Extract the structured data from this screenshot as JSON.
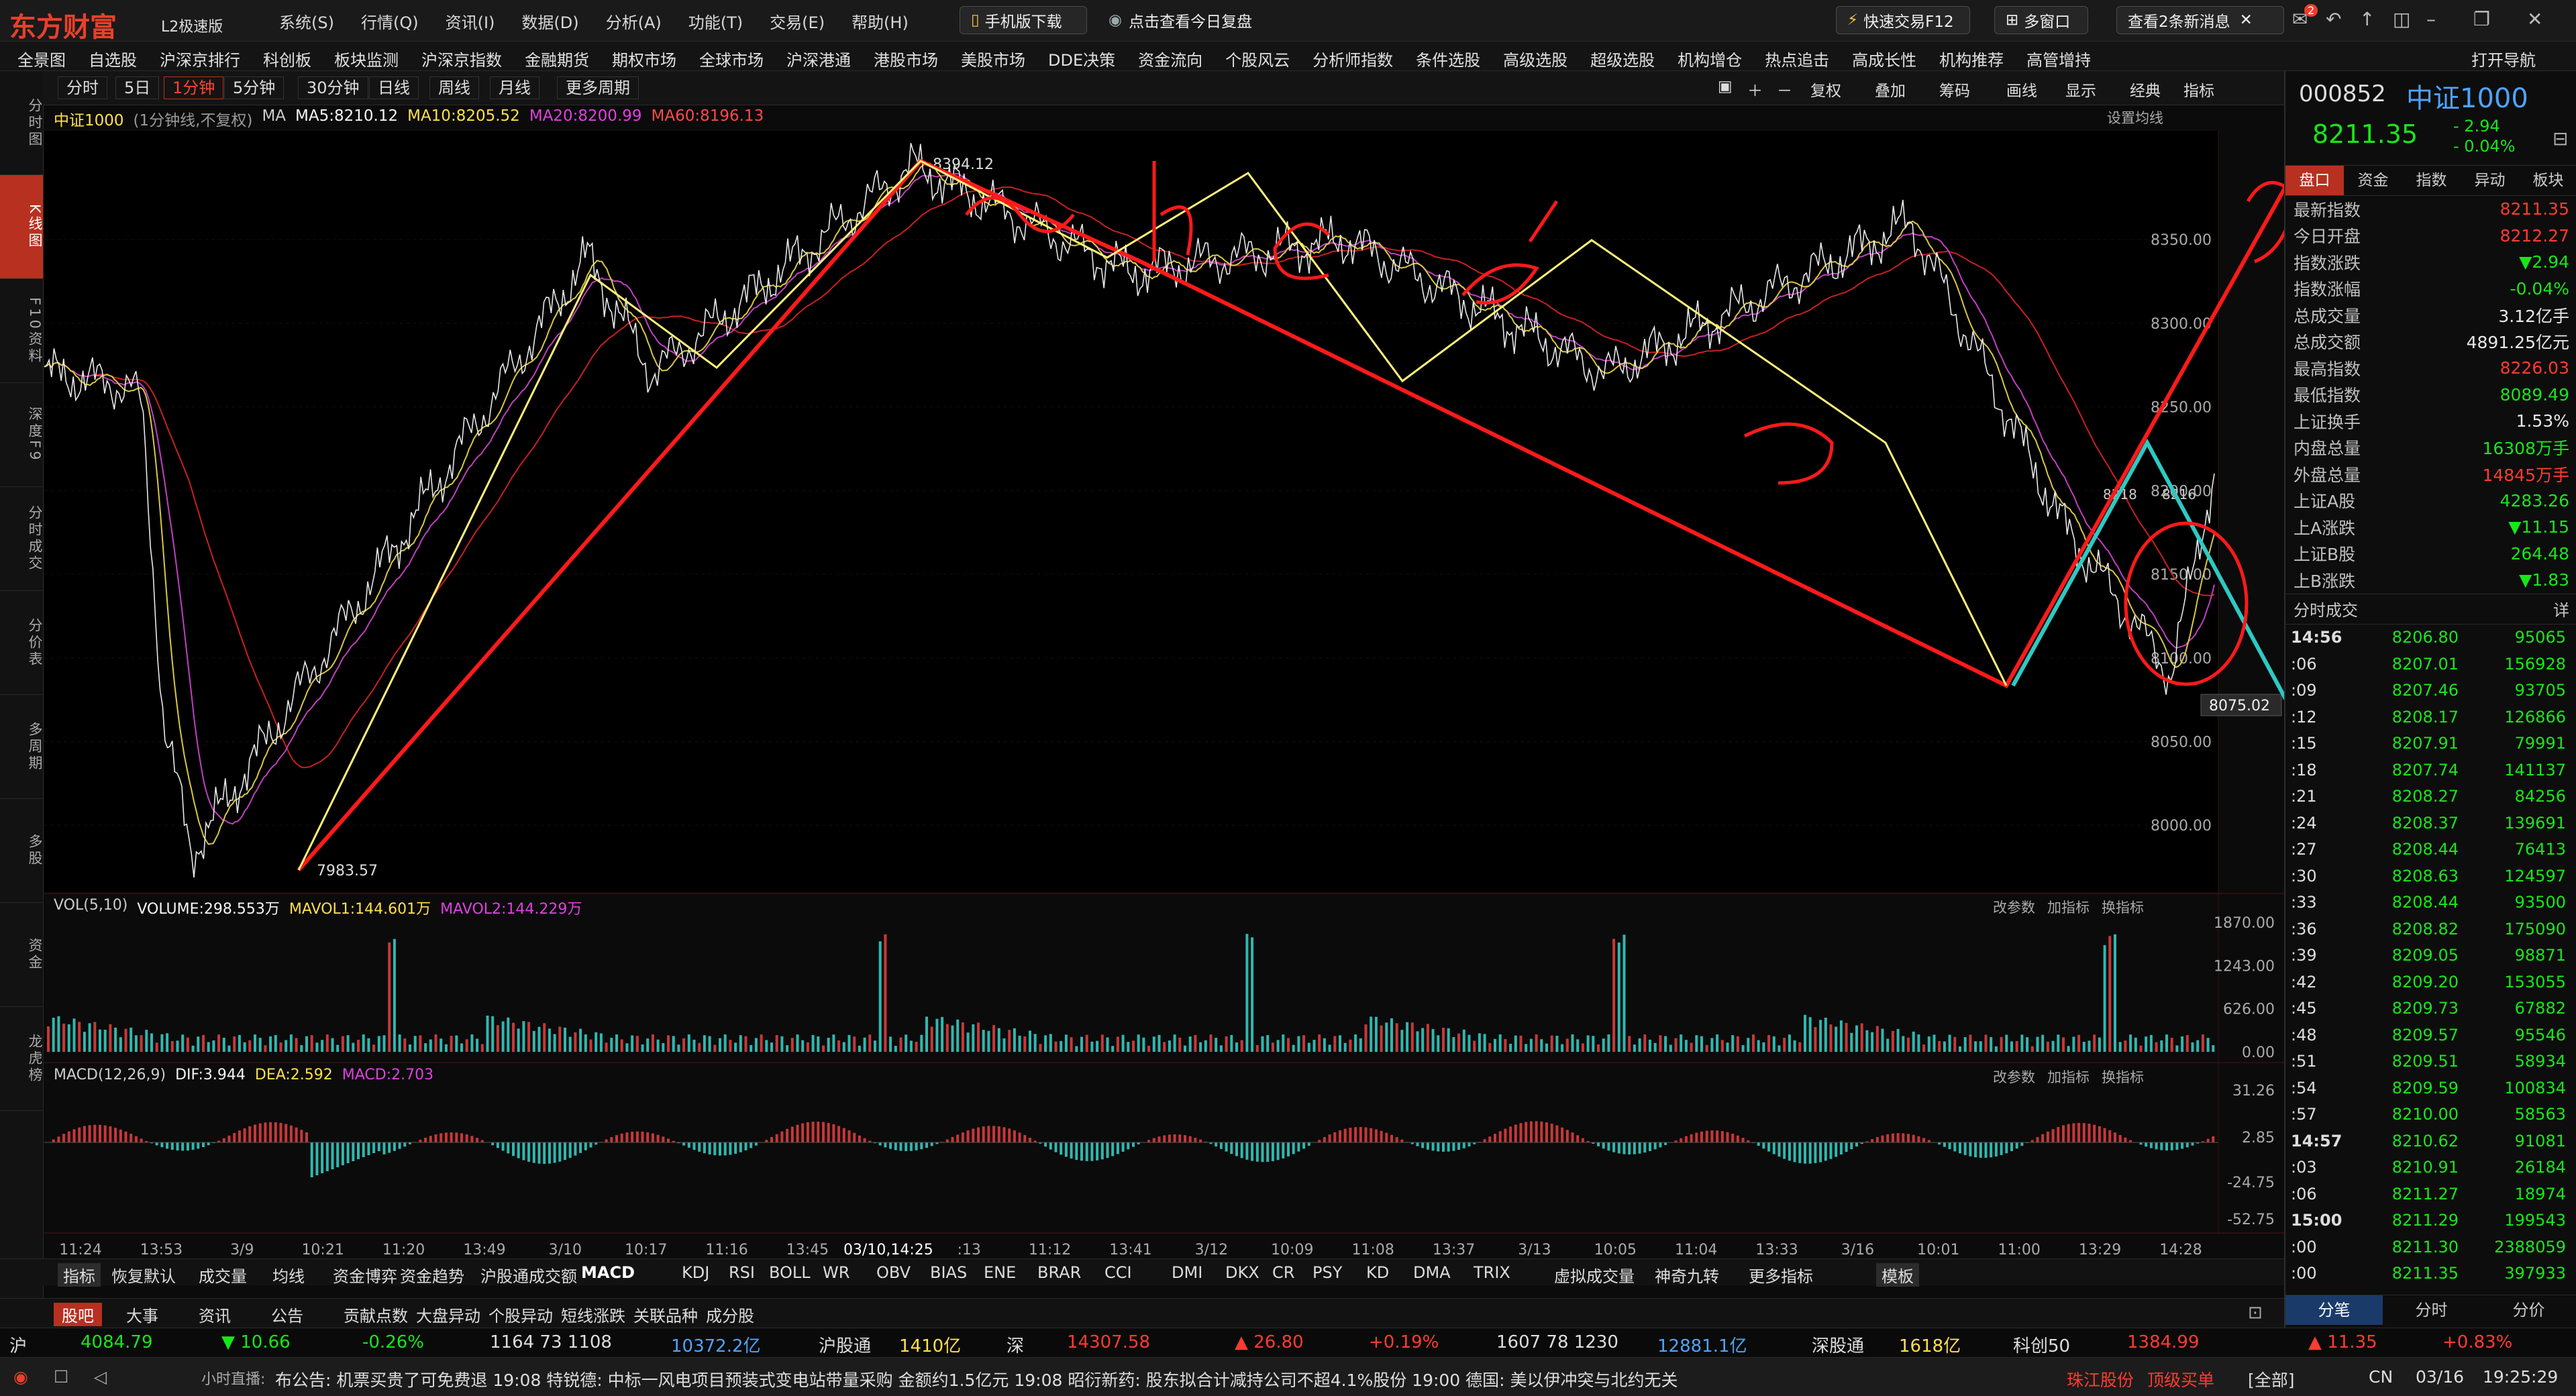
{
  "app": {
    "logo": "东方财富",
    "edition": "L2极速版"
  },
  "title_menu": [
    "系统(S)",
    "行情(Q)",
    "资讯(I)",
    "数据(D)",
    "分析(A)",
    "功能(T)",
    "交易(E)",
    "帮助(H)"
  ],
  "top_buttons": {
    "mobile": "手机版下载",
    "review": "点击查看今日复盘",
    "fast_trade": "快速交易F12",
    "multi_window": "多窗口",
    "messages": "查看2条新消息",
    "msg_badge": "2"
  },
  "nav": [
    "全景图",
    "自选股",
    "沪深京排行",
    "科创板",
    "板块监测",
    "沪深京指数",
    "金融期货",
    "期权市场",
    "全球市场",
    "沪深港通",
    "港股市场",
    "美股市场",
    "DDE决策",
    "资金流向",
    "个股风云",
    "分析师指数",
    "条件选股",
    "高级选股",
    "超级选股",
    "机构增仓",
    "热点追击",
    "高成长性",
    "机构推荐",
    "高管增持"
  ],
  "nav_right": "打开导航",
  "left_tabs": [
    {
      "label": "分时图",
      "active": false
    },
    {
      "label": "K线图",
      "active": true
    },
    {
      "label": "F10资料",
      "active": false
    },
    {
      "label": "深度F9",
      "active": false
    },
    {
      "label": "分时成交",
      "active": false
    },
    {
      "label": "分价表",
      "active": false
    },
    {
      "label": "多周期",
      "active": false
    },
    {
      "label": "多股",
      "active": false
    },
    {
      "label": "资金",
      "active": false
    },
    {
      "label": "龙虎榜",
      "active": false
    }
  ],
  "period_tabs": [
    {
      "label": "分时",
      "active": false
    },
    {
      "label": "5日",
      "active": false
    },
    {
      "label": "1分钟",
      "active": true
    },
    {
      "label": "5分钟",
      "active": false
    },
    {
      "label": "30分钟",
      "active": false
    },
    {
      "label": "日线",
      "active": false
    },
    {
      "label": "周线",
      "active": false
    },
    {
      "label": "月线",
      "active": false
    },
    {
      "label": "更多周期",
      "active": false
    }
  ],
  "toolbar": [
    "复权",
    "叠加",
    "筹码",
    "画线",
    "显示",
    "经典",
    "指标"
  ],
  "chart_header": {
    "name": "中证1000",
    "meta": "(1分钟线,不复权)",
    "ma_label": "MA",
    "ma5": "MA5:8210.12",
    "ma10": "MA10:8205.52",
    "ma20": "MA20:8200.99",
    "ma60": "MA60:8196.13",
    "setting": "设置均线"
  },
  "price_labels": {
    "high": "8394.12",
    "low": "7983.57",
    "current": "8075.02",
    "mini1": "8218",
    "mini2": "8216"
  },
  "vol_header": {
    "label": "VOL(5,10)",
    "volume": "VOLUME:298.553万",
    "mavol1": "MAVOL1:144.601万",
    "mavol2": "MAVOL2:144.229万"
  },
  "macd_header": {
    "label": "MACD(12,26,9)",
    "dif": "DIF:3.944",
    "dea": "DEA:2.592",
    "macd": "MACD:2.703"
  },
  "panel_actions": [
    "改参数",
    "加指标",
    "换指标"
  ],
  "x_axis": [
    "11:24",
    "13:53",
    "3/9",
    "10:21",
    "11:20",
    "13:49",
    "3/10",
    "10:17",
    "11:16",
    "13:45",
    "03/10,14:25",
    ":13",
    "11:12",
    "13:41",
    "3/12",
    "10:09",
    "11:08",
    "13:37",
    "3/13",
    "10:05",
    "11:04",
    "13:33",
    "3/16",
    "10:01",
    "11:00",
    "13:29",
    "14:28"
  ],
  "chart_data": [
    {
      "type": "line",
      "title": "中证1000",
      "price_axis": [
        "8350.00",
        "8300.00",
        "8250.00",
        "8200.00",
        "8150.00",
        "8100.00",
        "8050.00",
        "8000.00"
      ],
      "ylim": [
        7960,
        8415
      ],
      "key_points": [
        {
          "label": "start",
          "value": 8270
        },
        {
          "label": "3/9 low",
          "value": 7983.57
        },
        {
          "label": "3/10 high",
          "value": 8394.12
        },
        {
          "label": "3/16 low",
          "value": 8090
        },
        {
          "label": "last",
          "value": 8211.35
        }
      ]
    },
    {
      "type": "bar",
      "title": "VOL(5,10)",
      "y_axis": [
        "1870.00",
        "1243.00",
        "626.00",
        "0.00"
      ]
    },
    {
      "type": "bar",
      "title": "MACD(12,26,9)",
      "y_axis": [
        "31.26",
        "2.85",
        "-24.75",
        "-52.75"
      ]
    }
  ],
  "right_panel": {
    "code": "000852",
    "name": "中证1000",
    "price": "8211.35",
    "change": "- 2.94",
    "change_pct": "- 0.04%",
    "tabs": [
      "盘口",
      "资金",
      "指数",
      "异动",
      "板块"
    ],
    "quote": [
      {
        "label": "最新指数",
        "value": "8211.35",
        "color": "#ff3b30"
      },
      {
        "label": "今日开盘",
        "value": "8212.27",
        "color": "#ff3b30"
      },
      {
        "label": "指数涨跌",
        "value": "▼2.94",
        "color": "#19e619"
      },
      {
        "label": "指数涨幅",
        "value": "-0.04%",
        "color": "#19e619"
      },
      {
        "label": "总成交量",
        "value": "3.12亿手",
        "color": "#e8e8e8"
      },
      {
        "label": "总成交额",
        "value": "4891.25亿元",
        "color": "#e8e8e8"
      },
      {
        "label": "最高指数",
        "value": "8226.03",
        "color": "#ff3b30"
      },
      {
        "label": "最低指数",
        "value": "8089.49",
        "color": "#19e619"
      },
      {
        "label": "上证换手",
        "value": "1.53%",
        "color": "#e8e8e8"
      },
      {
        "label": "内盘总量",
        "value": "16308万手",
        "color": "#19e619"
      },
      {
        "label": "外盘总量",
        "value": "14845万手",
        "color": "#ff3b30"
      },
      {
        "label": "上证A股",
        "value": "4283.26",
        "color": "#19e619"
      },
      {
        "label": "上A涨跌",
        "value": "▼11.15",
        "color": "#19e619"
      },
      {
        "label": "上证B股",
        "value": "264.48",
        "color": "#19e619"
      },
      {
        "label": "上B涨跌",
        "value": "▼1.83",
        "color": "#19e619"
      }
    ],
    "trades_title": "分时成交",
    "trades_icon": "详",
    "trades": [
      {
        "time": "14:56",
        "price": "8206.80",
        "vol": "95065"
      },
      {
        "time": ":06",
        "price": "8207.01",
        "vol": "156928"
      },
      {
        "time": ":09",
        "price": "8207.46",
        "vol": "93705"
      },
      {
        "time": ":12",
        "price": "8208.17",
        "vol": "126866"
      },
      {
        "time": ":15",
        "price": "8207.91",
        "vol": "79991"
      },
      {
        "time": ":18",
        "price": "8207.74",
        "vol": "141137"
      },
      {
        "time": ":21",
        "price": "8208.27",
        "vol": "84256"
      },
      {
        "time": ":24",
        "price": "8208.37",
        "vol": "139691"
      },
      {
        "time": ":27",
        "price": "8208.44",
        "vol": "76413"
      },
      {
        "time": ":30",
        "price": "8208.63",
        "vol": "124597"
      },
      {
        "time": ":33",
        "price": "8208.44",
        "vol": "93500"
      },
      {
        "time": ":36",
        "price": "8208.82",
        "vol": "175090"
      },
      {
        "time": ":39",
        "price": "8209.05",
        "vol": "98871"
      },
      {
        "time": ":42",
        "price": "8209.20",
        "vol": "153055"
      },
      {
        "time": ":45",
        "price": "8209.73",
        "vol": "67882"
      },
      {
        "time": ":48",
        "price": "8209.57",
        "vol": "95546"
      },
      {
        "time": ":51",
        "price": "8209.51",
        "vol": "58934"
      },
      {
        "time": ":54",
        "price": "8209.59",
        "vol": "100834"
      },
      {
        "time": ":57",
        "price": "8210.00",
        "vol": "58563"
      },
      {
        "time": "14:57",
        "price": "8210.62",
        "vol": "91081"
      },
      {
        "time": ":03",
        "price": "8210.91",
        "vol": "26184"
      },
      {
        "time": ":06",
        "price": "8211.27",
        "vol": "18974"
      },
      {
        "time": "15:00",
        "price": "8211.29",
        "vol": "199543"
      },
      {
        "time": ":00",
        "price": "8211.30",
        "vol": "2388059"
      },
      {
        "time": ":00",
        "price": "8211.35",
        "vol": "397933"
      }
    ],
    "bottom_tabs": [
      "分笔",
      "分时",
      "分价"
    ]
  },
  "indicator_tabs": [
    "指标",
    "恢复默认",
    "成交量",
    "均线",
    "资金博弈",
    "资金趋势",
    "沪股通成交额",
    "MACD",
    "KDJ",
    "RSI",
    "BOLL",
    "WR",
    "OBV",
    "BIAS",
    "ENE",
    "BRAR",
    "CCI",
    "DMI",
    "DKX",
    "CR",
    "PSY",
    "KD",
    "DMA",
    "TRIX",
    "虚拟成交量",
    "神奇九转",
    "更多指标",
    "模板"
  ],
  "news_tabs": [
    "股吧",
    "大事",
    "资讯",
    "公告",
    "贡献点数",
    "大盘异动",
    "个股异动",
    "短线涨跌",
    "关联品种",
    "成分股"
  ],
  "ticker": {
    "sh_label": "沪",
    "sh_index": "4084.79",
    "sh_chg": "▼ 10.66",
    "sh_pct": "-0.26%",
    "sh_counts": "1164  73  1108",
    "sh_amount": "10372.2亿",
    "hgt_label": "沪股通",
    "hgt_amount": "1410亿",
    "sz_label": "深",
    "sz_index": "14307.58",
    "sz_chg": "▲ 26.80",
    "sz_pct": "+0.19%",
    "sz_counts": "1607  78  1230",
    "sz_amount": "12881.1亿",
    "sgt_label": "深股通",
    "sgt_amount": "1618亿",
    "kc_label": "科创50",
    "kc_index": "1384.99",
    "kc_chg": "▲ 11.35",
    "kc_pct": "+0.83%"
  },
  "taskbar": {
    "live": "小时直播:",
    "news": "布公告: 机票买贵了可免费退     19:08  特锐德: 中标一风电项目预装式变电站带量采购 金额约1.5亿元     19:08  昭衍新药: 股东拟合计减持公司不超4.1%股份     19:00  德国: 美以伊冲突与北约无关",
    "stock": "珠江股份",
    "tag": "顶级买单",
    "all": "[全部]",
    "lang": "CN",
    "date": "03/16",
    "time": "19:25:29"
  }
}
